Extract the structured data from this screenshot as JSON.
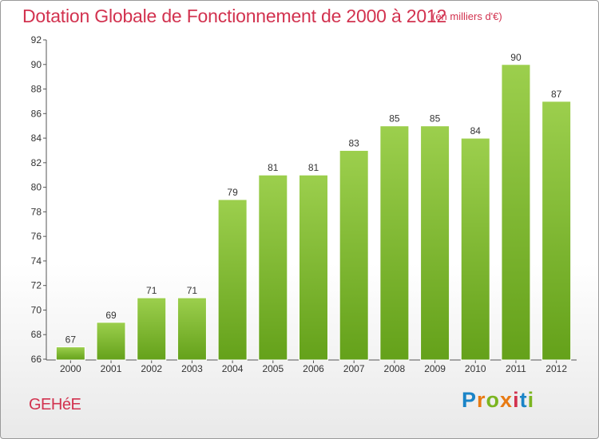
{
  "header": {
    "title": "Dotation Globale de Fonctionnement de 2000 à 2012",
    "unit_note": "(en milliers d'€)"
  },
  "footer": {
    "commune": "GEHéE",
    "logo_text": "Proxiti"
  },
  "colors": {
    "title": "#d2324f",
    "bar_top": "#9ccf4d",
    "bar_bottom": "#64a11a",
    "axis": "#555555",
    "grid_tick": "#333333"
  },
  "chart_data": {
    "type": "bar",
    "title": "Dotation Globale de Fonctionnement de 2000 à 2012",
    "xlabel": "",
    "ylabel": "en milliers d'€",
    "categories": [
      "2000",
      "2001",
      "2002",
      "2003",
      "2004",
      "2005",
      "2006",
      "2007",
      "2008",
      "2009",
      "2010",
      "2011",
      "2012"
    ],
    "values": [
      67,
      69,
      71,
      71,
      79,
      81,
      81,
      83,
      85,
      85,
      84,
      90,
      87
    ],
    "data_labels": [
      "67",
      "69",
      "71",
      "71",
      "79",
      "81",
      "81",
      "83",
      "85",
      "85",
      "84",
      "90",
      "87"
    ],
    "ylim": [
      66,
      92
    ],
    "yticks": [
      66,
      68,
      70,
      72,
      74,
      76,
      78,
      80,
      82,
      84,
      86,
      88,
      90,
      92
    ],
    "grid": false
  }
}
